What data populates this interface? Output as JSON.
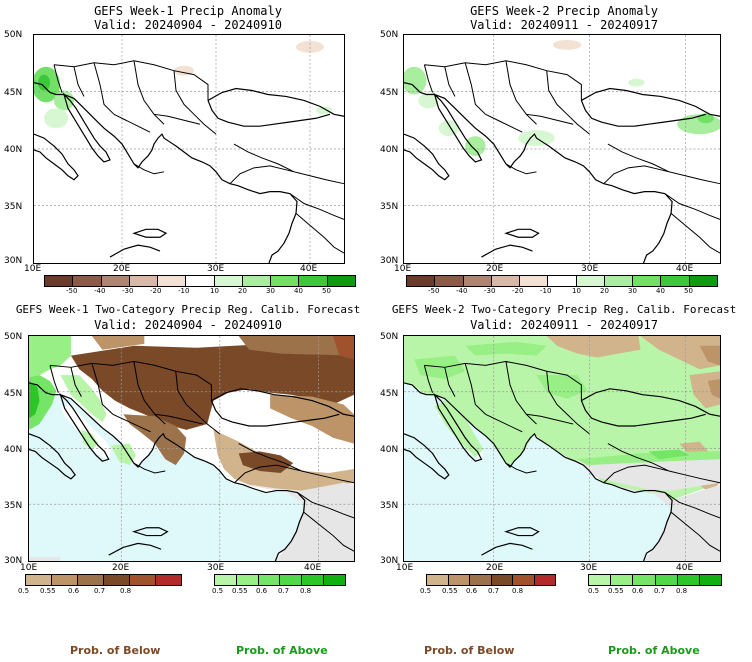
{
  "panels": [
    {
      "id": "w1-anom",
      "title": "GEFS Week-1 Precip Anomaly",
      "valid": "Valid: 20240904 - 20240910"
    },
    {
      "id": "w2-anom",
      "title": "GEFS Week-2 Precip Anomaly",
      "valid": "Valid: 20240911 - 20240917"
    },
    {
      "id": "w1-prob",
      "title": "GEFS Week-1 Two-Category Precip Reg. Calib. Forecast",
      "valid": "Valid: 20240904 - 20240910"
    },
    {
      "id": "w2-prob",
      "title": "GEFS Week-2 Two-Category Precip Reg. Calib. Forecast",
      "valid": "Valid: 20240911 - 20240917"
    }
  ],
  "lat_labels": [
    "50N",
    "45N",
    "40N",
    "35N",
    "30N"
  ],
  "lon_labels": [
    "10E",
    "20E",
    "30E",
    "40E"
  ],
  "anomaly_colorbar": {
    "labels": [
      "-50",
      "-40",
      "-30",
      "-20",
      "-10",
      "10",
      "20",
      "30",
      "40",
      "50"
    ],
    "colors": [
      "#6b3a2a",
      "#8e5a48",
      "#b08472",
      "#d8b9a9",
      "#f3e1d4",
      "#ffffff",
      "#d7f7d2",
      "#a8ee9e",
      "#72e066",
      "#3cc83a",
      "#0f9a16"
    ]
  },
  "prob_below_colorbar": {
    "labels": [
      "0.5",
      "0.55",
      "0.6",
      "0.7",
      "0.8"
    ],
    "colors": [
      "#d2b48c",
      "#bc9468",
      "#9c724a",
      "#7a4a28",
      "#a0522d",
      "#b22a2a"
    ]
  },
  "prob_above_colorbar": {
    "labels": [
      "0.5",
      "0.55",
      "0.6",
      "0.7",
      "0.8"
    ],
    "colors": [
      "#b9f5a8",
      "#98ef86",
      "#74e566",
      "#50d848",
      "#2cc628",
      "#10b010"
    ]
  },
  "legend": {
    "below": "Prob. of Below",
    "above": "Prob. of Above",
    "below_color": "#7a4a28",
    "above_color": "#1a9a1a"
  }
}
